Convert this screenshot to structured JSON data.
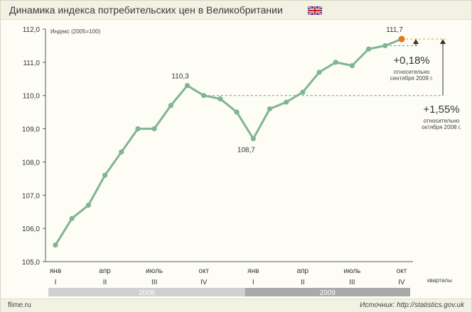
{
  "header": {
    "title": "Динамика индекса потребительских цен в Великобритании",
    "flag_icon": "uk-flag-icon"
  },
  "footer": {
    "left": "flime.ru",
    "right": "Источник: http://statistics.gov.uk"
  },
  "chart_data": {
    "type": "line",
    "title": "Динамика индекса потребительских цен в Великобритании",
    "ylabel": "Индекс (2005=100)",
    "ylim": [
      105,
      112
    ],
    "yticks": [
      "105,0",
      "106,0",
      "107,0",
      "108,0",
      "109,0",
      "110,0",
      "111,0",
      "112,0"
    ],
    "x": [
      "2008-01",
      "2008-02",
      "2008-03",
      "2008-04",
      "2008-05",
      "2008-06",
      "2008-07",
      "2008-08",
      "2008-09",
      "2008-10",
      "2008-11",
      "2008-12",
      "2009-01",
      "2009-02",
      "2009-03",
      "2009-04",
      "2009-05",
      "2009-06",
      "2009-07",
      "2009-08",
      "2009-09",
      "2009-10"
    ],
    "series": [
      {
        "values": [
          105.5,
          106.3,
          106.7,
          107.6,
          108.3,
          109.0,
          109.0,
          109.7,
          110.3,
          110.0,
          109.9,
          109.5,
          108.7,
          109.6,
          109.8,
          110.1,
          110.7,
          111.0,
          110.9,
          111.4,
          111.5,
          111.7
        ]
      }
    ],
    "month_labels": [
      {
        "index": 0,
        "text": "янв"
      },
      {
        "index": 3,
        "text": "апр"
      },
      {
        "index": 6,
        "text": "июль"
      },
      {
        "index": 9,
        "text": "окт"
      },
      {
        "index": 12,
        "text": "янв"
      },
      {
        "index": 15,
        "text": "апр"
      },
      {
        "index": 18,
        "text": "июль"
      },
      {
        "index": 21,
        "text": "окт"
      }
    ],
    "quarter_labels": [
      {
        "index": 0,
        "text": "I"
      },
      {
        "index": 3,
        "text": "II"
      },
      {
        "index": 6,
        "text": "III"
      },
      {
        "index": 9,
        "text": "IV"
      },
      {
        "index": 12,
        "text": "I"
      },
      {
        "index": 15,
        "text": "II"
      },
      {
        "index": 18,
        "text": "III"
      },
      {
        "index": 21,
        "text": "IV"
      }
    ],
    "quarters_label": "кварталы",
    "years": [
      {
        "text": "2008",
        "from": 0,
        "to": 11,
        "color": "#d0d0d0"
      },
      {
        "text": "2009",
        "from": 12,
        "to": 21,
        "color": "#a9a9a9"
      }
    ],
    "point_labels": [
      {
        "index": 8,
        "text": "110,3",
        "pos": "above"
      },
      {
        "index": 12,
        "text": "108,7",
        "pos": "below"
      },
      {
        "index": 21,
        "text": "111,7",
        "pos": "above"
      }
    ],
    "annotations": {
      "sep": {
        "big": "+0,18%",
        "line1": "относительно",
        "line2": "сентября 2009 г."
      },
      "oct": {
        "big": "+1,55%",
        "line1": "относительно",
        "line2": "октября 2008 г."
      }
    },
    "colors": {
      "line": "#7fb594",
      "highlight_point": "#e07b1f",
      "dash_green": "#5f9c78",
      "dash_orange": "#e8a04a"
    },
    "grid": false
  }
}
